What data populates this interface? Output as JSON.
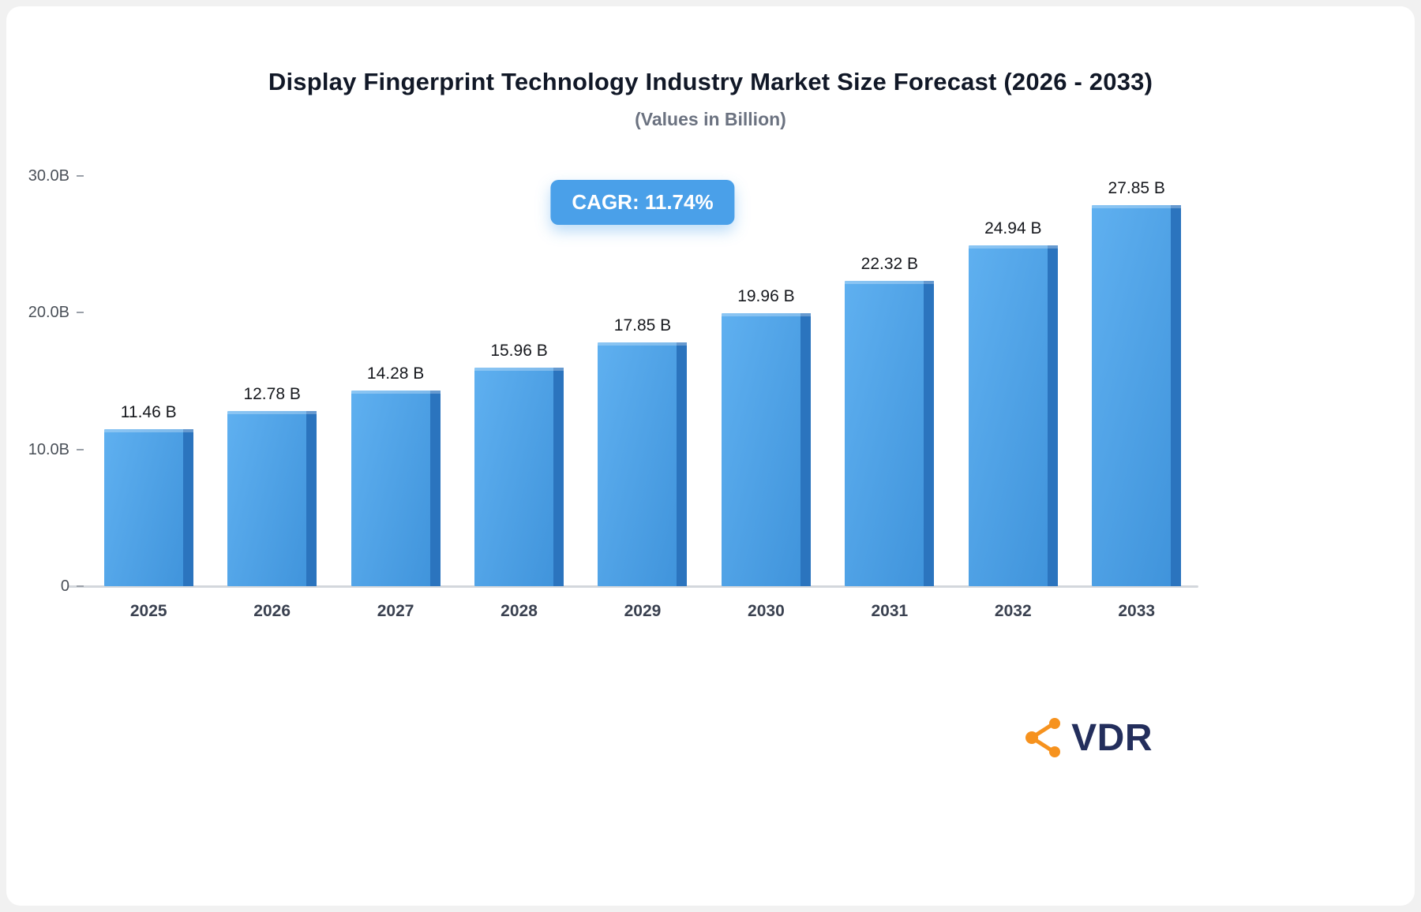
{
  "chart": {
    "title": "Display Fingerprint Technology Industry Market Size Forecast (2026 - 2033)",
    "subtitle": "(Values in Billion)",
    "cagr_label": "CAGR: 11.74%"
  },
  "chart_data": {
    "type": "bar",
    "title": "Display Fingerprint Technology Industry Market Size Forecast (2026 - 2033)",
    "subtitle": "(Values in Billion)",
    "categories": [
      "2025",
      "2026",
      "2027",
      "2028",
      "2029",
      "2030",
      "2031",
      "2032",
      "2033"
    ],
    "values": [
      11.46,
      12.78,
      14.28,
      15.96,
      17.85,
      19.96,
      22.32,
      24.94,
      27.85
    ],
    "value_labels": [
      "11.46 B",
      "12.78 B",
      "14.28 B",
      "15.96 B",
      "17.85 B",
      "19.96 B",
      "22.32 B",
      "24.94 B",
      "27.85 B"
    ],
    "xlabel": "",
    "ylabel": "",
    "ylim": [
      0,
      30
    ],
    "yticks": [
      {
        "label": "30.0B",
        "value": 30
      },
      {
        "label": "20.0B",
        "value": 20
      },
      {
        "label": "10.0B",
        "value": 10
      },
      {
        "label": "0",
        "value": 0
      }
    ],
    "grid": false,
    "legend": false,
    "annotation": "CAGR: 11.74%",
    "bar_face_color_light": "#5FB0F0",
    "bar_face_color_dark": "#3E92DA",
    "bar_side_color": "#2B74BE"
  },
  "logo": {
    "text": "VDR",
    "icon": "network-nodes-icon",
    "accent_orange": "#F6921E",
    "navy": "#232E5C"
  }
}
